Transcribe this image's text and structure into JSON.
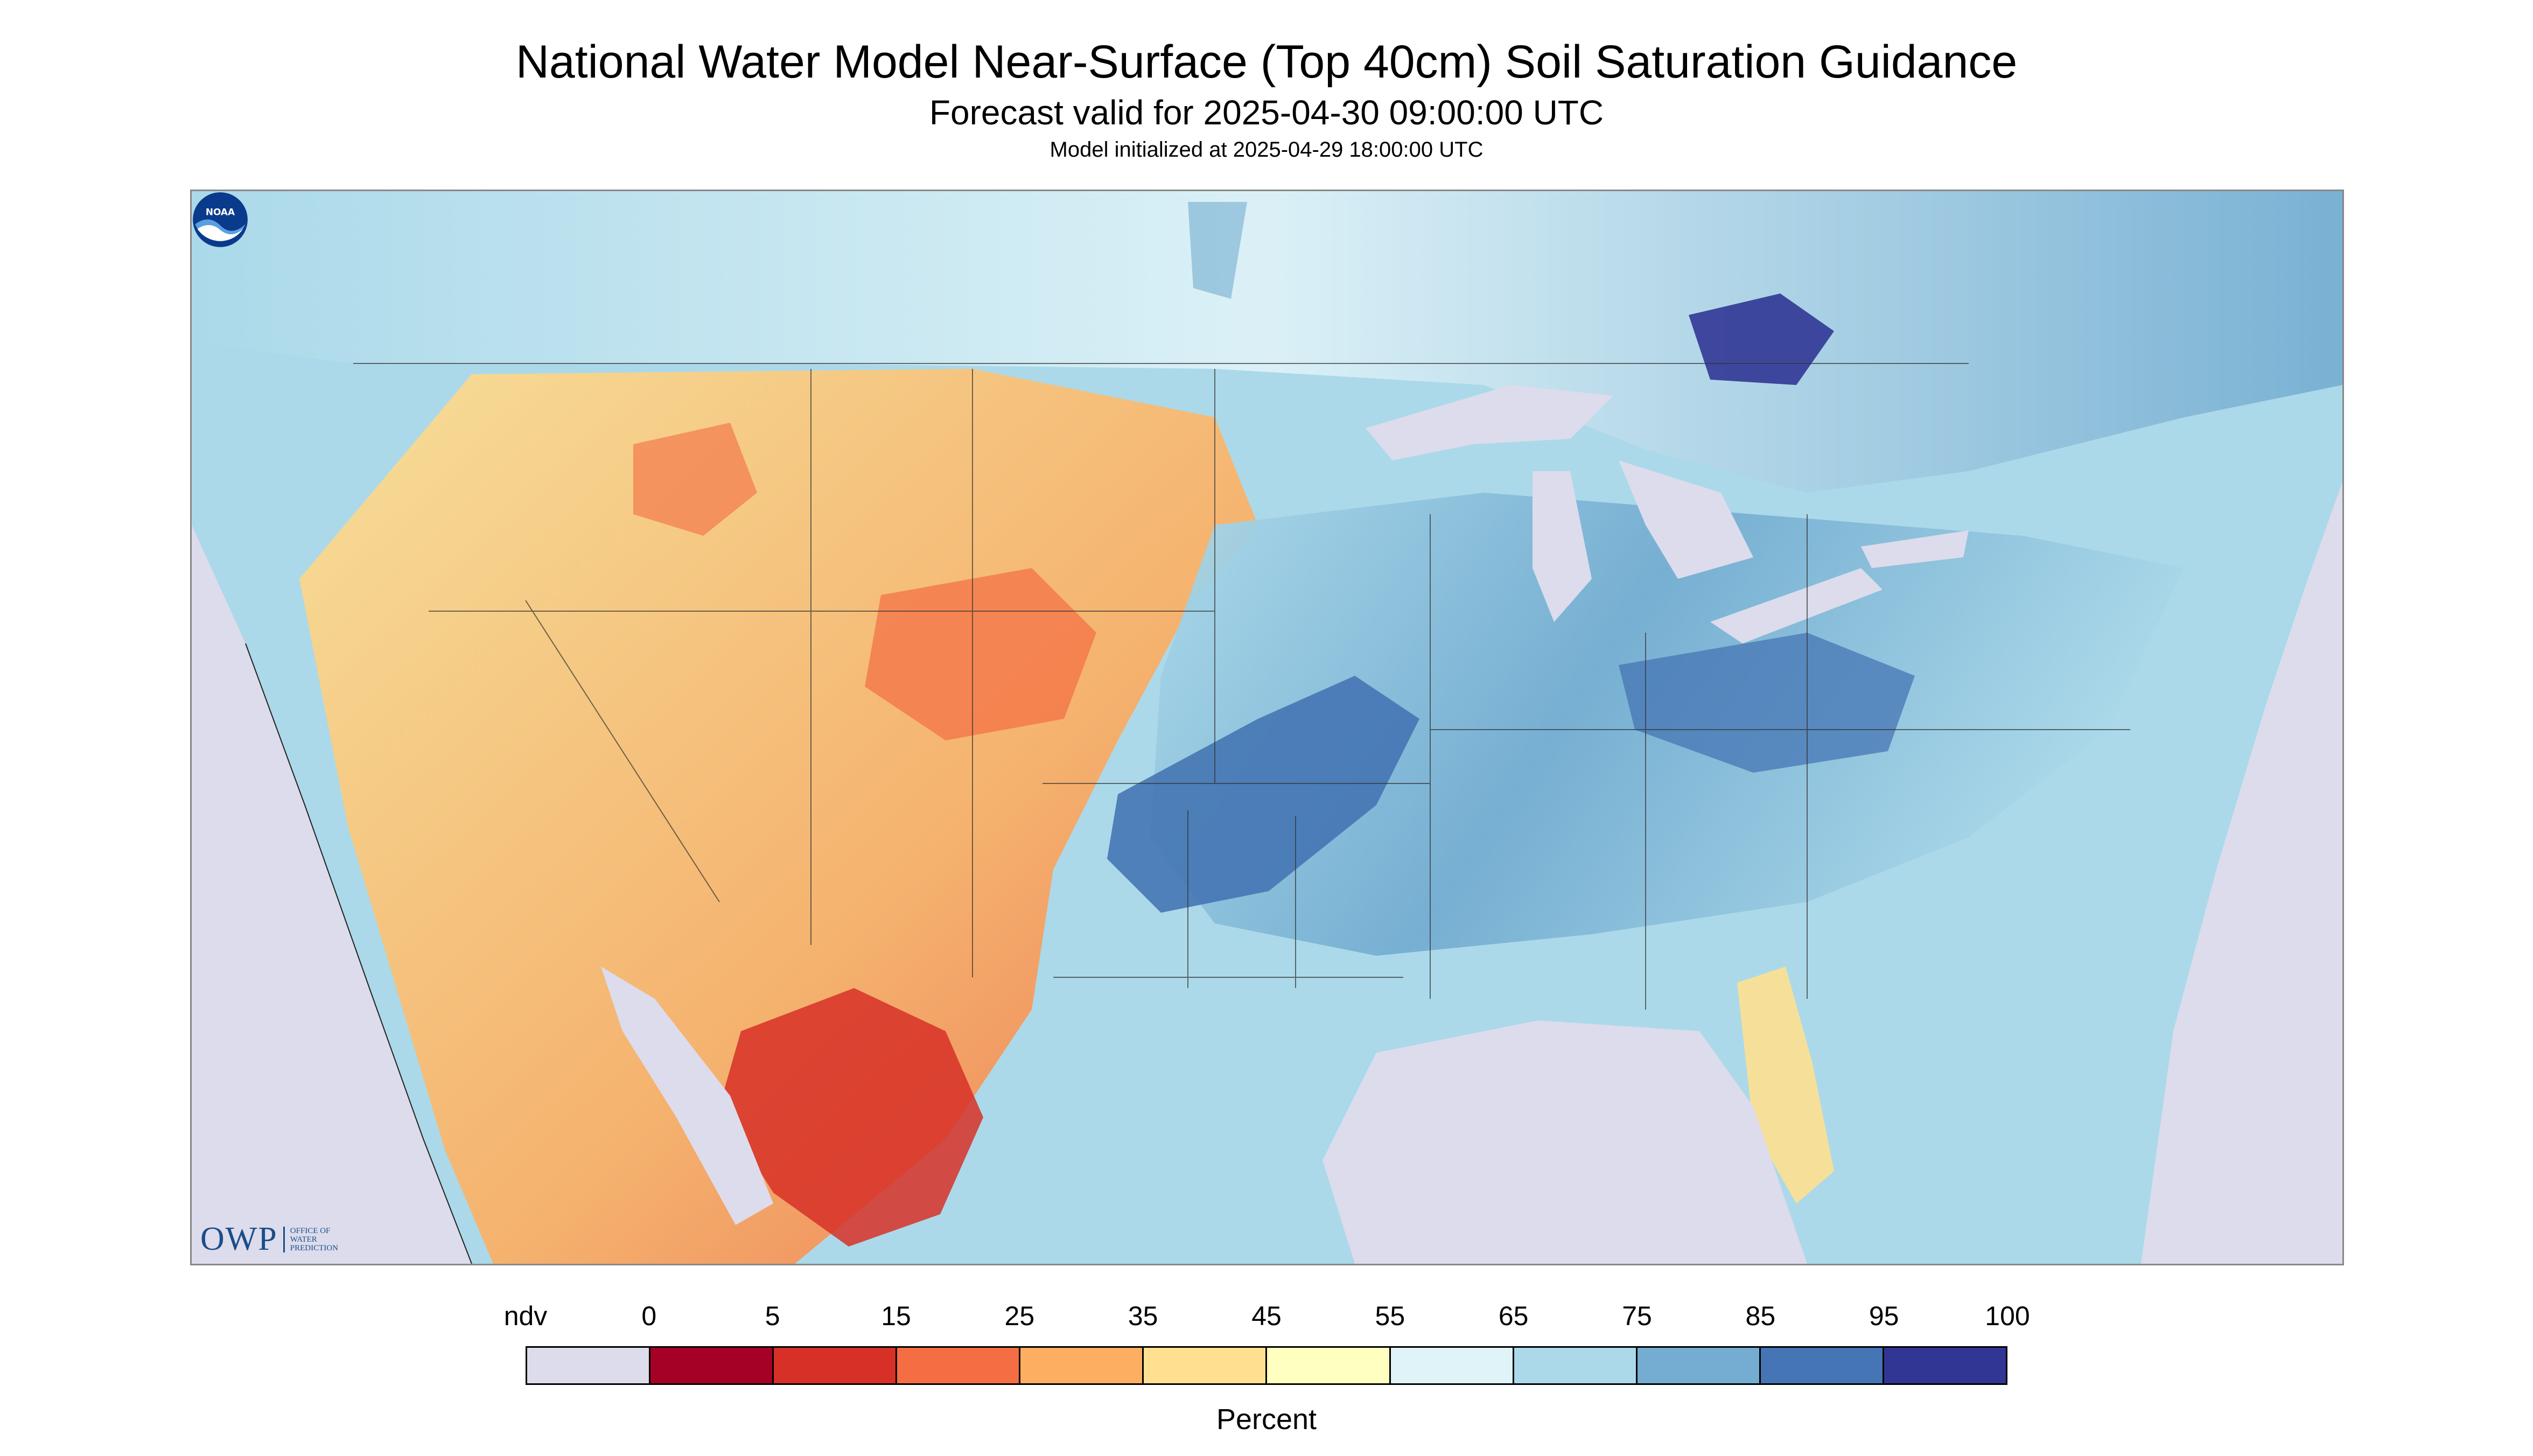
{
  "header": {
    "title": "National Water Model Near-Surface (Top 40cm) Soil Saturation Guidance",
    "valid_time": "Forecast valid for 2025-04-30 09:00:00 UTC",
    "init_time": "Model initialized at 2025-04-29 18:00:00 UTC"
  },
  "map": {
    "nodata_color": "#dcdcec",
    "logos": {
      "owp_mark": "OWP",
      "owp_name": "OFFICE OF WATER PREDICTION",
      "noaa_name": "NOAA"
    }
  },
  "legend": {
    "label": "Percent",
    "ticks": [
      "ndv",
      "0",
      "5",
      "15",
      "25",
      "35",
      "45",
      "55",
      "65",
      "75",
      "85",
      "95",
      "100"
    ],
    "colors": [
      "#dcdcec",
      "#a50026",
      "#d73027",
      "#f46d43",
      "#fdae61",
      "#fee090",
      "#ffffbf",
      "#e0f3f8",
      "#abd9e9",
      "#74add1",
      "#4575b4",
      "#313695"
    ]
  }
}
